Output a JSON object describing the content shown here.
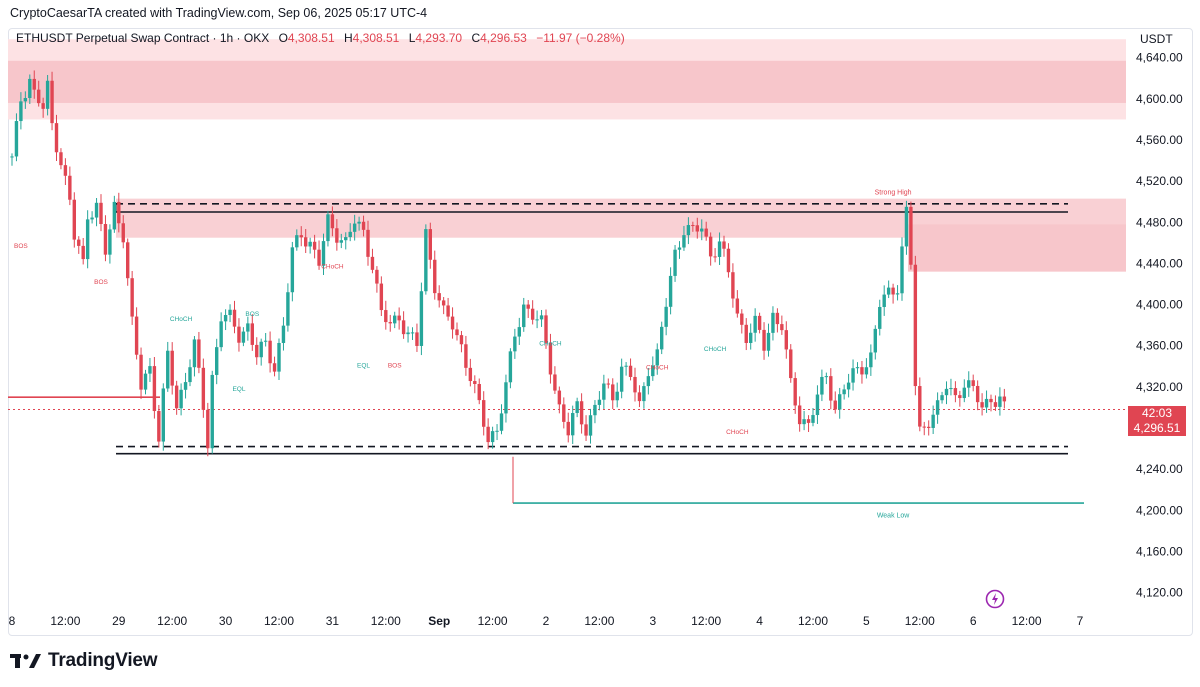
{
  "header": {
    "attribution": "CryptoCaesarTA created with TradingView.com, Sep 06, 2025 05:17 UTC-4"
  },
  "legend": {
    "symbol": "ETHUSDT Perpetual Swap Contract · 1h · OKX",
    "open_label": "O",
    "open": "4,308.51",
    "high_label": "H",
    "high": "4,308.51",
    "low_label": "L",
    "low": "4,293.70",
    "close_label": "C",
    "close": "4,296.53",
    "change": "−11.97 (−0.28%)"
  },
  "price_axis": {
    "currency": "USDT",
    "countdown": "42:03",
    "last_price": "4,296.51"
  },
  "colors": {
    "up": "#26a69a",
    "down": "#e04552",
    "supply_zone": "#f7c6cb",
    "text": "#131722"
  },
  "chart_data": {
    "type": "candlestick",
    "symbol": "ETHUSDT",
    "timeframe": "1h",
    "y_ticks": [
      4120,
      4160,
      4200,
      4240,
      4280,
      4320,
      4360,
      4400,
      4440,
      4480,
      4520,
      4560,
      4600,
      4640
    ],
    "ylim": [
      4105,
      4665
    ],
    "x_ticks": [
      "8",
      "12:00",
      "29",
      "12:00",
      "30",
      "12:00",
      "31",
      "12:00",
      "Sep",
      "12:00",
      "2",
      "12:00",
      "3",
      "12:00",
      "4",
      "12:00",
      "5",
      "12:00",
      "6",
      "12:00",
      "7"
    ],
    "x_start": "Aug 28 00:00",
    "hours_per_tick": 12,
    "close_path": [
      [
        0,
        4540
      ],
      [
        2,
        4600
      ],
      [
        4,
        4620
      ],
      [
        5,
        4605
      ],
      [
        7,
        4590
      ],
      [
        8,
        4610
      ],
      [
        9,
        4575
      ],
      [
        11,
        4540
      ],
      [
        13,
        4500
      ],
      [
        14,
        4465
      ],
      [
        16,
        4440
      ],
      [
        17,
        4490
      ],
      [
        19,
        4495
      ],
      [
        21,
        4450
      ],
      [
        23,
        4495
      ],
      [
        25,
        4470
      ],
      [
        27,
        4380
      ],
      [
        29,
        4320
      ],
      [
        31,
        4340
      ],
      [
        33,
        4270
      ],
      [
        35,
        4350
      ],
      [
        37,
        4300
      ],
      [
        39,
        4330
      ],
      [
        41,
        4360
      ],
      [
        43,
        4300
      ],
      [
        44,
        4265
      ],
      [
        45,
        4330
      ],
      [
        47,
        4390
      ],
      [
        49,
        4385
      ],
      [
        51,
        4370
      ],
      [
        53,
        4380
      ],
      [
        55,
        4350
      ],
      [
        57,
        4360
      ],
      [
        59,
        4340
      ],
      [
        61,
        4380
      ],
      [
        63,
        4450
      ],
      [
        65,
        4470
      ],
      [
        67,
        4460
      ],
      [
        69,
        4440
      ],
      [
        71,
        4480
      ],
      [
        73,
        4470
      ],
      [
        75,
        4460
      ],
      [
        77,
        4480
      ],
      [
        79,
        4470
      ],
      [
        81,
        4440
      ],
      [
        83,
        4390
      ],
      [
        85,
        4380
      ],
      [
        87,
        4390
      ],
      [
        89,
        4370
      ],
      [
        91,
        4360
      ],
      [
        93,
        4470
      ],
      [
        95,
        4420
      ],
      [
        97,
        4390
      ],
      [
        99,
        4380
      ],
      [
        101,
        4360
      ],
      [
        103,
        4330
      ],
      [
        105,
        4300
      ],
      [
        107,
        4270
      ],
      [
        109,
        4280
      ],
      [
        111,
        4320
      ],
      [
        113,
        4370
      ],
      [
        115,
        4400
      ],
      [
        117,
        4390
      ],
      [
        119,
        4380
      ],
      [
        121,
        4340
      ],
      [
        123,
        4300
      ],
      [
        125,
        4275
      ],
      [
        127,
        4300
      ],
      [
        129,
        4280
      ],
      [
        131,
        4300
      ],
      [
        133,
        4320
      ],
      [
        135,
        4310
      ],
      [
        137,
        4340
      ],
      [
        139,
        4330
      ],
      [
        141,
        4300
      ],
      [
        143,
        4340
      ],
      [
        145,
        4350
      ],
      [
        147,
        4400
      ],
      [
        149,
        4450
      ],
      [
        151,
        4475
      ],
      [
        153,
        4470
      ],
      [
        155,
        4475
      ],
      [
        157,
        4450
      ],
      [
        159,
        4460
      ],
      [
        161,
        4430
      ],
      [
        163,
        4390
      ],
      [
        165,
        4370
      ],
      [
        167,
        4380
      ],
      [
        169,
        4360
      ],
      [
        171,
        4390
      ],
      [
        173,
        4380
      ],
      [
        175,
        4320
      ],
      [
        177,
        4290
      ],
      [
        179,
        4285
      ],
      [
        181,
        4310
      ],
      [
        183,
        4330
      ],
      [
        185,
        4300
      ],
      [
        187,
        4320
      ],
      [
        189,
        4330
      ],
      [
        191,
        4340
      ],
      [
        193,
        4350
      ],
      [
        195,
        4400
      ],
      [
        197,
        4410
      ],
      [
        199,
        4420
      ],
      [
        201,
        4490
      ],
      [
        202,
        4440
      ],
      [
        203,
        4320
      ],
      [
        204,
        4275
      ],
      [
        206,
        4290
      ],
      [
        208,
        4300
      ],
      [
        210,
        4320
      ],
      [
        212,
        4310
      ],
      [
        214,
        4325
      ],
      [
        216,
        4315
      ],
      [
        218,
        4300
      ],
      [
        220,
        4310
      ],
      [
        222,
        4307
      ],
      [
        223,
        4297
      ]
    ],
    "horizontal_levels": [
      {
        "price": 4498,
        "style": "dashed",
        "color": "#131722"
      },
      {
        "price": 4490,
        "style": "solid",
        "color": "#131722"
      },
      {
        "price": 4262,
        "style": "dashed",
        "color": "#131722"
      },
      {
        "price": 4255,
        "style": "solid",
        "color": "#131722"
      },
      {
        "price": 4310,
        "style": "solid",
        "color": "#e04552"
      },
      {
        "price": 4207,
        "style": "solid",
        "color": "#26a69a"
      },
      {
        "price": 4298,
        "style": "dotted",
        "color": "#e04552"
      }
    ],
    "zones": [
      {
        "top": 4658,
        "bottom": 4580,
        "color": "#fde2e4"
      },
      {
        "top": 4637,
        "bottom": 4596,
        "color": "#f7c6cb"
      },
      {
        "top": 4503,
        "bottom": 4465,
        "color": "#f9d0d4"
      },
      {
        "top": 4478,
        "bottom": 4432,
        "color": "#f7c6cb"
      }
    ],
    "annotations": [
      {
        "text": "BOS",
        "price": 4455,
        "hour": 2,
        "color": "#e04552"
      },
      {
        "text": "BOS",
        "price": 4420,
        "hour": 20,
        "color": "#e04552"
      },
      {
        "text": "CHoCH",
        "price": 4384,
        "hour": 38,
        "color": "#26a69a"
      },
      {
        "text": "BOS",
        "price": 4389,
        "hour": 54,
        "color": "#26a69a"
      },
      {
        "text": "EQL",
        "price": 4316,
        "hour": 51,
        "color": "#26a69a"
      },
      {
        "text": "CHoCH",
        "price": 4435,
        "hour": 72,
        "color": "#e04552"
      },
      {
        "text": "EQL",
        "price": 4339,
        "hour": 79,
        "color": "#26a69a"
      },
      {
        "text": "BOS",
        "price": 4339,
        "hour": 86,
        "color": "#e04552"
      },
      {
        "text": "CHoCH",
        "price": 4360,
        "hour": 121,
        "color": "#26a69a"
      },
      {
        "text": "CHoCH",
        "price": 4337,
        "hour": 145,
        "color": "#e04552"
      },
      {
        "text": "CHoCH",
        "price": 4355,
        "hour": 158,
        "color": "#26a69a"
      },
      {
        "text": "CHoCH",
        "price": 4274,
        "hour": 163,
        "color": "#e04552"
      },
      {
        "text": "Strong High",
        "price": 4507,
        "hour": 198,
        "color": "#e04552"
      },
      {
        "text": "Weak Low",
        "price": 4193,
        "hour": 198,
        "color": "#26a69a"
      }
    ]
  },
  "footer": {
    "brand": "TradingView"
  }
}
